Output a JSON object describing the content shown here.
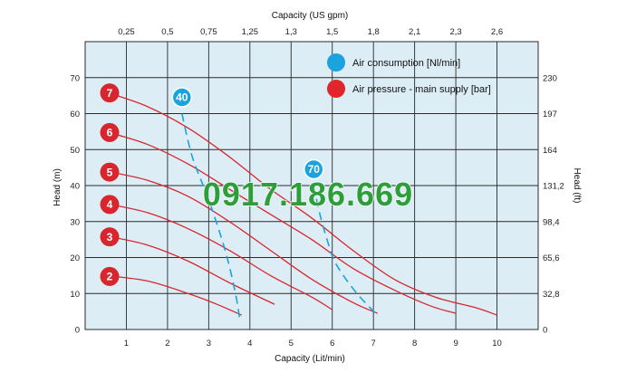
{
  "chart_data": {
    "type": "line",
    "xlabel": "Capacity (Lit/min)",
    "x2label": "Capacity (US gpm)",
    "ylabel": "Head (m)",
    "y2label": "Head (ft)",
    "xlim": [
      0,
      11
    ],
    "ylim": [
      0,
      80
    ],
    "grid": true,
    "x_ticks": [
      "1",
      "2",
      "3",
      "4",
      "5",
      "6",
      "7",
      "8",
      "9",
      "10"
    ],
    "x_tick_values": [
      1,
      2,
      3,
      4,
      5,
      6,
      7,
      8,
      9,
      10
    ],
    "x2_ticks": [
      "0,25",
      "0,5",
      "0,75",
      "1,25",
      "1,3",
      "1,5",
      "1,8",
      "2,1",
      "2,3",
      "2,6"
    ],
    "y_ticks": [
      "0",
      "10",
      "20",
      "30",
      "40",
      "50",
      "60",
      "70"
    ],
    "y_tick_values": [
      0,
      10,
      20,
      30,
      40,
      50,
      60,
      70
    ],
    "y2_ticks": [
      "0",
      "32,8",
      "65,6",
      "98,4",
      "131,2",
      "164",
      "197",
      "230"
    ],
    "legend": [
      {
        "label": "Air consumption  [Nl/min]",
        "color": "#1aa3dd"
      },
      {
        "label": "Air pressure  - main supply  [bar]",
        "color": "#e0262b"
      }
    ],
    "series": [
      {
        "name": "2",
        "type": "pressure",
        "x": [
          0.5,
          1.5,
          2.5,
          3.2,
          3.8
        ],
        "y": [
          15,
          13.5,
          10,
          7,
          4
        ]
      },
      {
        "name": "3",
        "type": "pressure",
        "x": [
          0.5,
          1.5,
          2.5,
          3.5,
          4.6
        ],
        "y": [
          26,
          23.5,
          19,
          13,
          7
        ]
      },
      {
        "name": "4",
        "type": "pressure",
        "x": [
          0.5,
          1.5,
          2.5,
          3.5,
          4.5,
          5.5,
          6.0
        ],
        "y": [
          35,
          32.5,
          28,
          22,
          15,
          9,
          5.5
        ]
      },
      {
        "name": "5",
        "type": "pressure",
        "x": [
          0.5,
          1.5,
          2.5,
          3.5,
          4.5,
          5.5,
          6.5,
          7.1
        ],
        "y": [
          44,
          41.5,
          37,
          30,
          22,
          14,
          7.5,
          4.5
        ]
      },
      {
        "name": "6",
        "type": "pressure",
        "x": [
          0.5,
          1.5,
          2.5,
          3.5,
          4.5,
          5.5,
          6.5,
          7.5,
          8.4,
          9.0
        ],
        "y": [
          55,
          51.5,
          46,
          39,
          32,
          25,
          17,
          11,
          6.5,
          4.5
        ]
      },
      {
        "name": "7",
        "type": "pressure",
        "x": [
          0.5,
          1.5,
          2.5,
          3.5,
          4.5,
          5.5,
          6.5,
          7.5,
          8.5,
          9.5,
          10.0
        ],
        "y": [
          66,
          62,
          56,
          48,
          39,
          31,
          22,
          14,
          9,
          6,
          4
        ]
      },
      {
        "name": "40",
        "type": "air",
        "x": [
          2.35,
          2.6,
          3.0,
          3.4,
          3.65,
          3.75
        ],
        "y": [
          60,
          48,
          36,
          22,
          10,
          3
        ]
      },
      {
        "name": "70",
        "type": "air",
        "x": [
          5.55,
          5.7,
          5.9,
          6.1,
          6.6,
          7.1
        ],
        "y": [
          40,
          32,
          24,
          18,
          10,
          4
        ]
      }
    ]
  },
  "watermark": "0917.186.669",
  "colors": {
    "plot_bg": "#dcedf6",
    "grid": "#2a2a2a",
    "pressure": "#d8262e",
    "air": "#1aa3dd",
    "watermark": "#2e9e3a"
  }
}
